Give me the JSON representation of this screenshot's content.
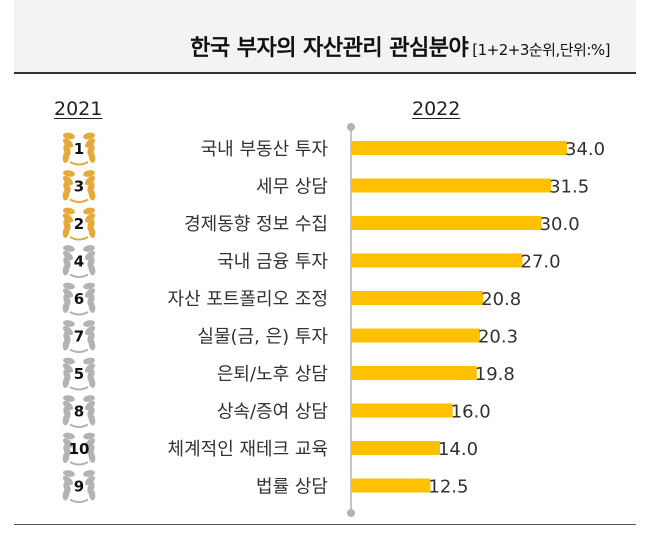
{
  "header": {
    "title": "한국 부자의 자산관리 관심분야",
    "unit": "[1+2+3순위,단위:%]"
  },
  "years": {
    "previous": "2021",
    "current": "2022"
  },
  "colors": {
    "bar": "#ffc000",
    "gold": "#e8a93c",
    "silver": "#b3b3b3",
    "axis": "#b3b3b3"
  },
  "chart_data": {
    "type": "bar",
    "orientation": "horizontal",
    "title": "한국 부자의 자산관리 관심분야",
    "xlim": [
      0,
      34
    ],
    "grid": false,
    "categories": [
      "국내 부동산 투자",
      "세무 상담",
      "경제동향 정보 수집",
      "국내 금융 투자",
      "자산 포트폴리오 조정",
      "실물(금, 은) 투자",
      "은퇴/노후 상담",
      "상속/증여 상담",
      "체계적인 재테크 교육",
      "법률 상담"
    ],
    "values": [
      34.0,
      31.5,
      30.0,
      27.0,
      20.8,
      20.3,
      19.8,
      16.0,
      14.0,
      12.5
    ],
    "value_labels": [
      "34.0",
      "31.5",
      "30.0",
      "27.0",
      "20.8",
      "20.3",
      "19.8",
      "16.0",
      "14.0",
      "12.5"
    ],
    "rank_2021": [
      "1",
      "3",
      "2",
      "4",
      "6",
      "7",
      "5",
      "8",
      "10",
      "9"
    ],
    "rank_badge_style": [
      "gold",
      "gold",
      "gold",
      "silver",
      "silver",
      "silver",
      "silver",
      "silver",
      "silver",
      "silver"
    ]
  }
}
